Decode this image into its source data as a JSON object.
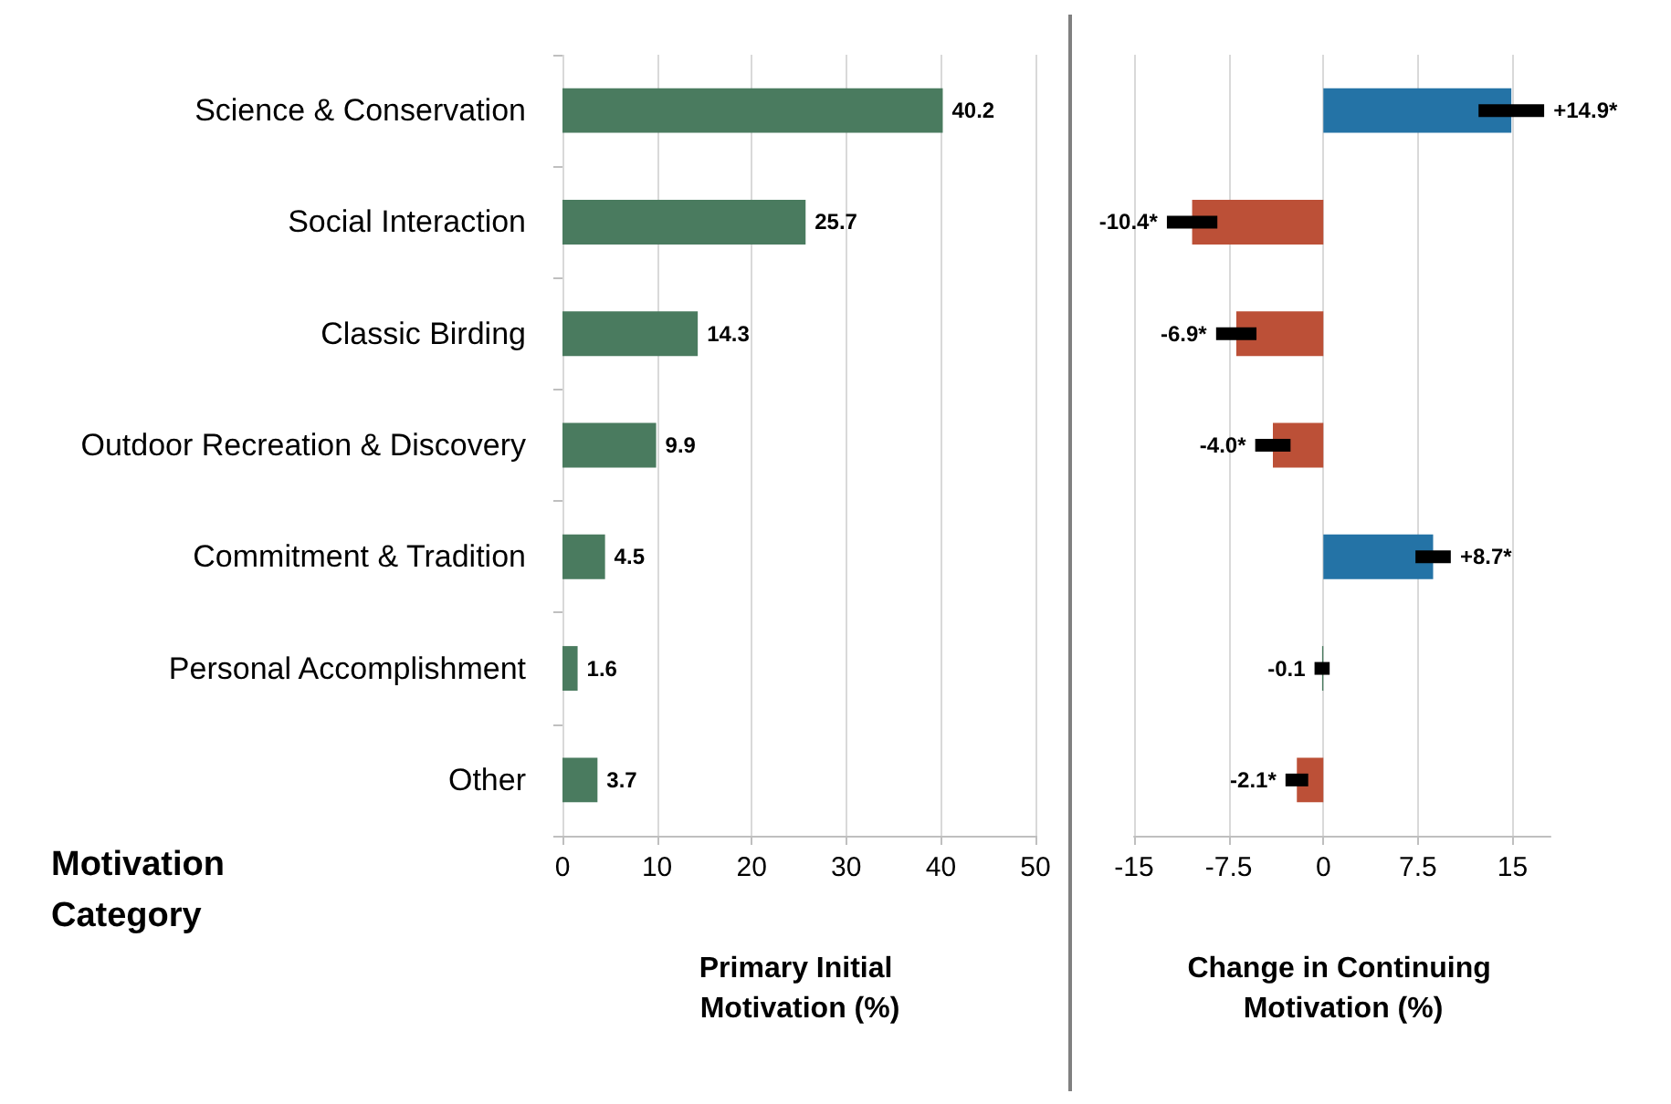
{
  "chart_data": [
    {
      "type": "bar",
      "orientation": "horizontal",
      "categories": [
        "Science & Conservation",
        "Social Interaction",
        "Classic Birding",
        "Outdoor Recreation & Discovery",
        "Commitment & Tradition",
        "Personal Accomplishment",
        "Other"
      ],
      "values": [
        40.2,
        25.7,
        14.3,
        9.9,
        4.5,
        1.6,
        3.7
      ],
      "color": "#4a7b5f",
      "data_labels": true,
      "xlim": [
        0,
        50
      ],
      "xticks": [
        0,
        10,
        20,
        30,
        40,
        50
      ],
      "grid": "x",
      "xlabel": "Primary Initial Motivation (%)",
      "ylabel": "Motivation Category"
    },
    {
      "type": "bar",
      "orientation": "horizontal",
      "categories": [
        null,
        null,
        null,
        null,
        null,
        null,
        null
      ],
      "values": [
        14.9,
        -10.4,
        -6.9,
        -4.0,
        8.7,
        -0.1,
        -2.1
      ],
      "colors": [
        "#2473a6",
        "#bc5037",
        "#bc5037",
        "#bc5037",
        "#2473a6",
        "#4a7b5f",
        "#bc5037"
      ],
      "errors": [
        2.6,
        2.0,
        1.6,
        1.4,
        1.4,
        0.6,
        0.9
      ],
      "value_labels": [
        "+14.9*",
        "-10.4*",
        "-6.9*",
        "-4.0*",
        "+8.7*",
        "-0.1",
        "-2.1*"
      ],
      "xlim": [
        -15,
        18
      ],
      "xticks": [
        -15,
        -7.5,
        0,
        7.5,
        15
      ],
      "grid": "x",
      "tick_labels": "x",
      "xlabel": "Change in Continuing Motivation (%)"
    }
  ]
}
